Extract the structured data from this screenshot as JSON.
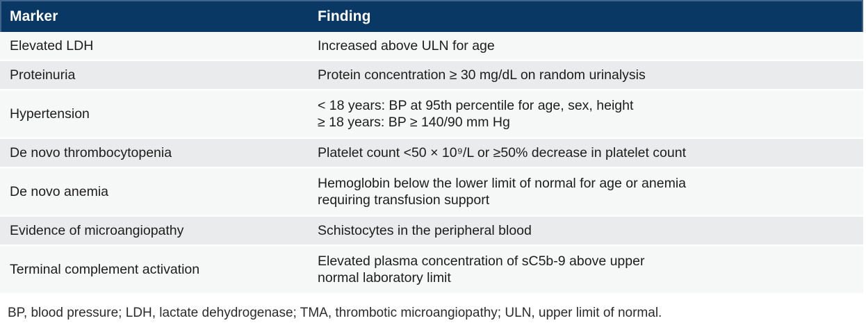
{
  "colors": {
    "header-bg": "#083863",
    "header-border": "#41628b",
    "row-light": "#f6f7f7",
    "row-shaded": "#e9ebec",
    "text": "#1c1c1c",
    "header-text": "#ffffff",
    "footnote-text": "#2b2b2b"
  },
  "table": {
    "columns": [
      {
        "label": "Marker"
      },
      {
        "label": "Finding"
      }
    ],
    "rows": [
      {
        "marker": "Elevated LDH",
        "finding": "Increased above ULN for age"
      },
      {
        "marker": "Proteinuria",
        "finding": "Protein concentration ≥ 30 mg/dL on random urinalysis"
      },
      {
        "marker": "Hypertension",
        "finding": "< 18 years: BP at 95th percentile for age, sex, height\n≥ 18 years: BP ≥ 140/90 mm Hg"
      },
      {
        "marker": "De novo thrombocytopenia",
        "finding": "Platelet count <50 × 10⁹/L or ≥50% decrease in platelet count"
      },
      {
        "marker": "De novo anemia",
        "finding": "Hemoglobin below the lower limit of normal for age or anemia\nrequiring transfusion support"
      },
      {
        "marker": "Evidence of microangiopathy",
        "finding": "Schistocytes in the peripheral blood"
      },
      {
        "marker": "Terminal complement activation",
        "finding": "Elevated plasma concentration of sC5b-9 above upper\nnormal laboratory limit"
      }
    ]
  },
  "footnote": "BP, blood pressure; LDH, lactate dehydrogenase; TMA, thrombotic microangiopathy; ULN, upper limit of normal."
}
